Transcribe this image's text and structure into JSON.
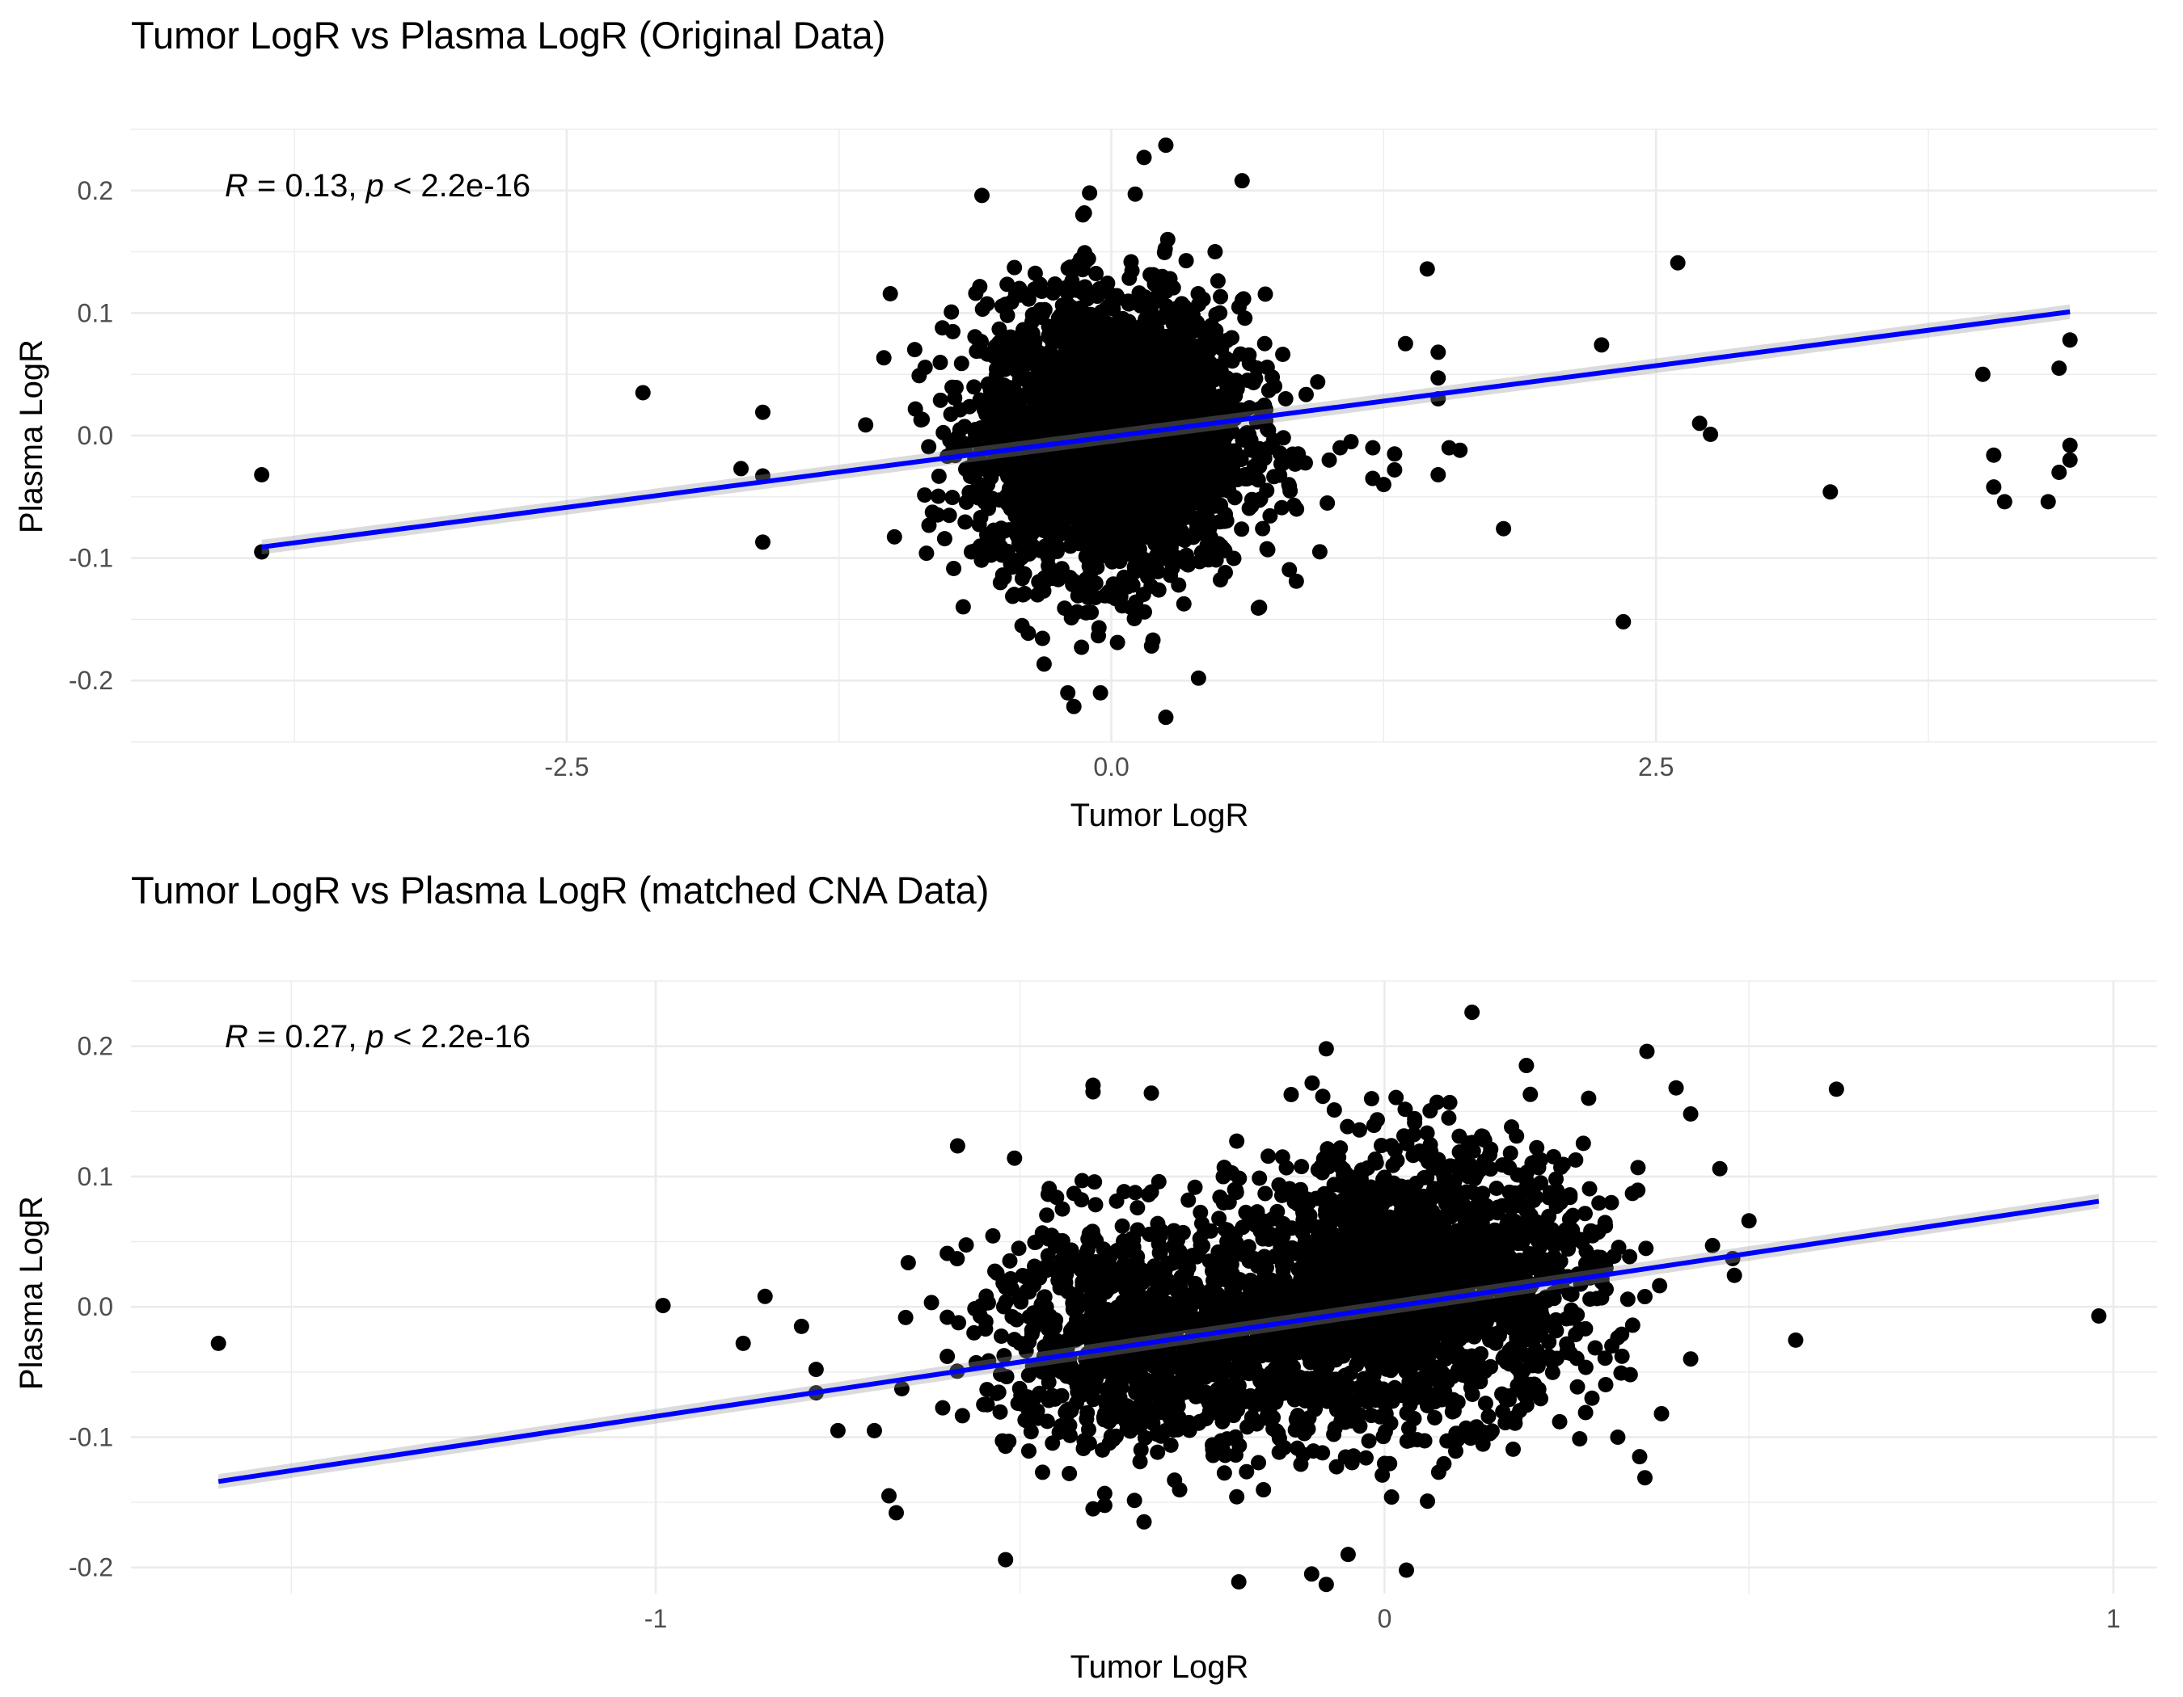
{
  "chart_data": [
    {
      "type": "scatter",
      "title": "Tumor LogR vs Plasma LogR (Original Data)",
      "xlabel": "Tumor LogR",
      "ylabel": "Plasma LogR",
      "xlim": [
        -4.5,
        4.8
      ],
      "ylim": [
        -0.25,
        0.25
      ],
      "x_ticks": [
        -2.5,
        0,
        2.5
      ],
      "x_tick_labels": [
        "-2.5",
        "0.0",
        "2.5"
      ],
      "y_ticks": [
        -0.2,
        -0.1,
        0,
        0.1,
        0.2
      ],
      "y_tick_labels": [
        "-0.2",
        "-0.1",
        "0.0",
        "0.1",
        "0.2"
      ],
      "annotation": {
        "r_label": "R",
        "r_value": "= 0.13,",
        "p_label": "p",
        "p_value": "< 2.2e-16"
      },
      "regression": {
        "color": "#0000ff",
        "x": [
          -3.9,
          4.4
        ],
        "y": [
          -0.091,
          0.101
        ]
      },
      "cluster": {
        "center_x": 0.0,
        "center_y": 0.0,
        "sd_x": 0.3,
        "sd_y": 0.055,
        "n": 3200,
        "note": "dense core of points"
      },
      "points": [
        [
          -3.9,
          -0.032
        ],
        [
          -3.9,
          -0.095
        ],
        [
          -2.15,
          0.035
        ],
        [
          -1.6,
          0.019
        ],
        [
          -1.6,
          -0.033
        ],
        [
          -1.7,
          -0.027
        ],
        [
          -1.6,
          -0.087
        ],
        [
          1.45,
          0.136
        ],
        [
          1.35,
          0.075
        ],
        [
          1.5,
          0.068
        ],
        [
          1.5,
          0.047
        ],
        [
          1.5,
          0.03
        ],
        [
          1.55,
          -0.01
        ],
        [
          1.6,
          -0.012
        ],
        [
          1.5,
          -0.032
        ],
        [
          1.3,
          -0.028
        ],
        [
          1.25,
          -0.04
        ],
        [
          1.2,
          -0.035
        ],
        [
          1.2,
          -0.01
        ],
        [
          1.3,
          -0.015
        ],
        [
          1.1,
          -0.005
        ],
        [
          1.0,
          -0.02
        ],
        [
          1.05,
          -0.01
        ],
        [
          0.85,
          -0.06
        ],
        [
          0.8,
          0.03
        ],
        [
          1.8,
          -0.076
        ],
        [
          2.25,
          0.074
        ],
        [
          2.35,
          -0.152
        ],
        [
          2.6,
          0.141
        ],
        [
          2.7,
          0.01
        ],
        [
          2.75,
          0.001
        ],
        [
          3.3,
          -0.046
        ],
        [
          4.0,
          0.05
        ],
        [
          4.05,
          -0.016
        ],
        [
          4.05,
          -0.042
        ],
        [
          4.1,
          -0.054
        ],
        [
          4.3,
          -0.054
        ],
        [
          4.35,
          -0.03
        ],
        [
          4.4,
          -0.02
        ],
        [
          4.4,
          -0.008
        ],
        [
          4.35,
          0.055
        ],
        [
          4.4,
          0.078
        ],
        [
          0.25,
          0.237
        ],
        [
          0.15,
          0.227
        ],
        [
          0.6,
          0.208
        ],
        [
          0.25,
          -0.23
        ],
        [
          0.4,
          -0.198
        ],
        [
          -0.2,
          -0.21
        ],
        [
          -0.05,
          -0.21
        ],
        [
          -0.1,
          0.198
        ]
      ]
    },
    {
      "type": "scatter",
      "title": "Tumor LogR vs Plasma LogR (matched CNA Data)",
      "xlabel": "Tumor LogR",
      "ylabel": "Plasma LogR",
      "xlim": [
        -1.72,
        1.06
      ],
      "ylim": [
        -0.22,
        0.25
      ],
      "x_ticks": [
        -1,
        0,
        1
      ],
      "x_tick_labels": [
        "-1",
        "0",
        "1"
      ],
      "y_ticks": [
        -0.2,
        -0.1,
        0,
        0.1,
        0.2
      ],
      "y_tick_labels": [
        "-0.2",
        "-0.1",
        "0.0",
        "0.1",
        "0.2"
      ],
      "annotation": {
        "r_label": "R",
        "r_value": "= 0.27,",
        "p_label": "p",
        "p_value": "< 2.2e-16"
      },
      "regression": {
        "color": "#0000ff",
        "x": [
          -1.6,
          0.98
        ],
        "y": [
          -0.134,
          0.081
        ]
      },
      "clusters": [
        {
          "center_x": 0.05,
          "center_y": 0.02,
          "sd_x": 0.12,
          "sd_y": 0.05,
          "n": 1700,
          "note": "right dense cluster"
        },
        {
          "center_x": -0.35,
          "center_y": -0.02,
          "sd_x": 0.1,
          "sd_y": 0.045,
          "n": 800,
          "note": "left dense cluster"
        },
        {
          "center_x": -0.15,
          "center_y": -0.03,
          "sd_x": 0.1,
          "sd_y": 0.04,
          "n": 500,
          "note": "bridge between clusters"
        }
      ],
      "points": [
        [
          -1.6,
          -0.028
        ],
        [
          -0.99,
          0.001
        ],
        [
          -0.85,
          0.008
        ],
        [
          -0.88,
          -0.028
        ],
        [
          -0.8,
          -0.015
        ],
        [
          -0.78,
          -0.048
        ],
        [
          -0.78,
          -0.066
        ],
        [
          -0.75,
          -0.095
        ],
        [
          -0.7,
          -0.095
        ],
        [
          -0.68,
          -0.145
        ],
        [
          -0.67,
          -0.158
        ],
        [
          -0.6,
          -0.008
        ],
        [
          -0.6,
          -0.038
        ],
        [
          -0.6,
          0.041
        ],
        [
          -0.52,
          0.015
        ],
        [
          -0.55,
          -0.075
        ],
        [
          -0.52,
          -0.107
        ],
        [
          -0.52,
          -0.194
        ],
        [
          -0.5,
          -0.028
        ],
        [
          -0.45,
          0.084
        ],
        [
          -0.4,
          0.165
        ],
        [
          -0.4,
          0.17
        ],
        [
          -0.32,
          0.164
        ],
        [
          -0.4,
          -0.155
        ],
        [
          -0.33,
          -0.165
        ],
        [
          -0.22,
          0.107
        ],
        [
          -0.14,
          0.115
        ],
        [
          -0.2,
          -0.211
        ],
        [
          -0.1,
          -0.205
        ],
        [
          -0.08,
          -0.213
        ],
        [
          -0.08,
          0.198
        ],
        [
          0.12,
          0.226
        ],
        [
          0.2,
          0.163
        ],
        [
          0.28,
          0.16
        ],
        [
          0.36,
          0.196
        ],
        [
          0.4,
          0.168
        ],
        [
          0.42,
          0.148
        ],
        [
          0.46,
          0.106
        ],
        [
          0.5,
          0.066
        ],
        [
          0.45,
          0.047
        ],
        [
          0.42,
          -0.04
        ],
        [
          0.35,
          -0.115
        ],
        [
          0.38,
          -0.082
        ],
        [
          0.32,
          -0.1
        ],
        [
          0.25,
          -0.035
        ],
        [
          0.1,
          -0.102
        ],
        [
          0.03,
          -0.202
        ],
        [
          -0.05,
          -0.19
        ],
        [
          0.62,
          0.167
        ],
        [
          0.98,
          -0.007
        ]
      ]
    }
  ]
}
